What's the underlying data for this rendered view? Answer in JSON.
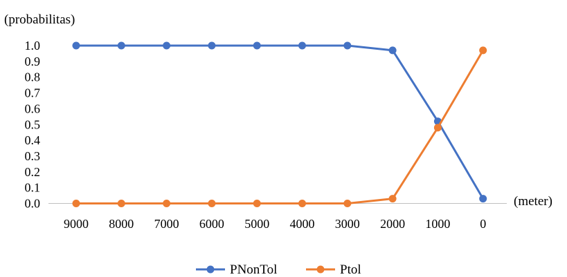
{
  "chart_data": {
    "type": "line",
    "ylabel": "(probabilitas)",
    "xlabel": "(meter)",
    "categories": [
      "9000",
      "8000",
      "7000",
      "6000",
      "5000",
      "4000",
      "3000",
      "2000",
      "1000",
      "0"
    ],
    "ylim": [
      0,
      1
    ],
    "yticks": [
      "1.0",
      "0.9",
      "0.8",
      "0.7",
      "0.6",
      "0.5",
      "0.4",
      "0.3",
      "0.2",
      "0.1",
      "0.0"
    ],
    "grid": false,
    "legend_position": "bottom",
    "series": [
      {
        "name": "PNonTol",
        "color": "#4472C4",
        "values": [
          1.0,
          1.0,
          1.0,
          1.0,
          1.0,
          1.0,
          1.0,
          0.97,
          0.52,
          0.03
        ]
      },
      {
        "name": "Ptol",
        "color": "#ED7D31",
        "values": [
          0.0,
          0.0,
          0.0,
          0.0,
          0.0,
          0.0,
          0.0,
          0.03,
          0.48,
          0.97
        ]
      }
    ]
  }
}
